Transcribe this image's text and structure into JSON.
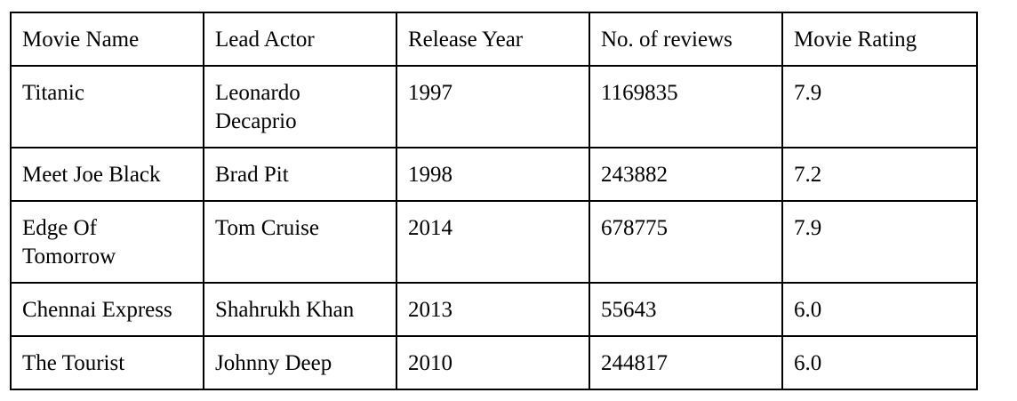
{
  "table": {
    "columns": [
      "Movie Name",
      "Lead Actor",
      "Release Year",
      "No. of reviews",
      "Movie Rating"
    ],
    "rows": [
      [
        "Titanic",
        "Leonardo Decaprio",
        "1997",
        "1169835",
        "7.9"
      ],
      [
        "Meet Joe Black",
        "Brad Pit",
        "1998",
        "243882",
        "7.2"
      ],
      [
        "Edge Of Tomorrow",
        "Tom Cruise",
        "2014",
        "678775",
        "7.9"
      ],
      [
        "Chennai Express",
        "Shahrukh Khan",
        "2013",
        "55643",
        "6.0"
      ],
      [
        "The Tourist",
        "Johnny Deep",
        "2010",
        "244817",
        "6.0"
      ]
    ]
  }
}
